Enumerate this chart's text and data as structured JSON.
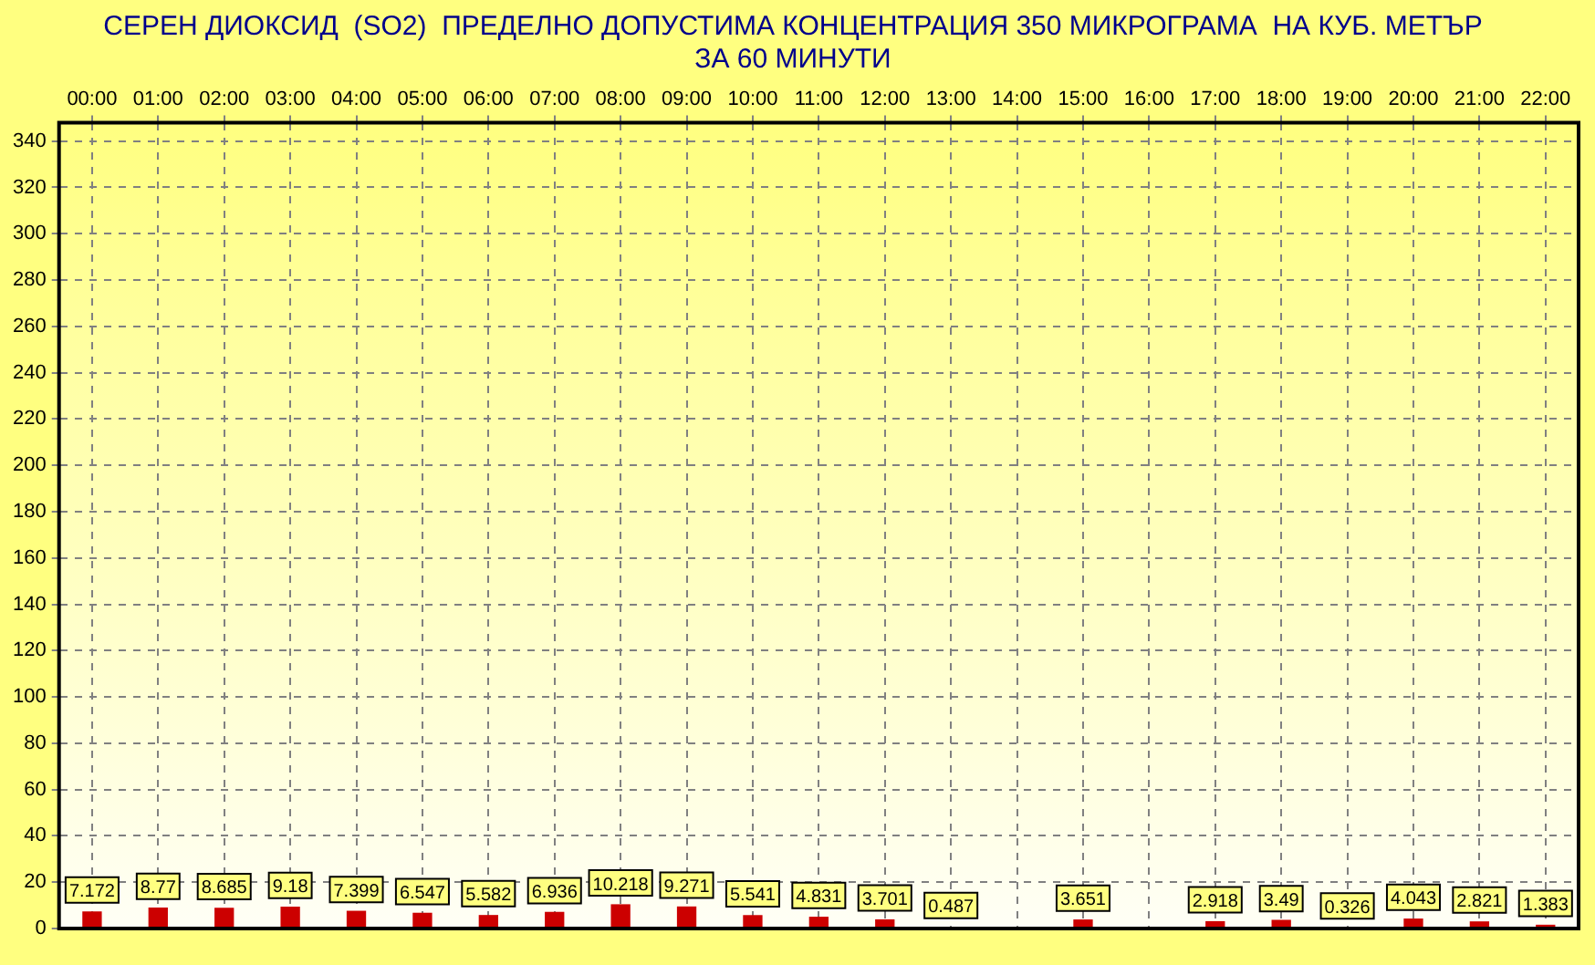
{
  "chart_data": {
    "type": "bar",
    "title": "СЕРЕН ДИОКСИД  (SO2)  ПРЕДЕЛНО ДОПУСТИМА КОНЦЕНТРАЦИЯ 350 МИКРОГРАМА  НА КУБ. МЕТЪР",
    "subtitle": "ЗА 60 МИНУТИ",
    "categories": [
      "00:00",
      "01:00",
      "02:00",
      "03:00",
      "04:00",
      "05:00",
      "06:00",
      "07:00",
      "08:00",
      "09:00",
      "10:00",
      "11:00",
      "12:00",
      "13:00",
      "14:00",
      "15:00",
      "16:00",
      "17:00",
      "18:00",
      "19:00",
      "20:00",
      "21:00",
      "22:00"
    ],
    "values": [
      7.172,
      8.77,
      8.685,
      9.18,
      7.399,
      6.547,
      5.582,
      6.936,
      10.218,
      9.271,
      5.541,
      4.831,
      3.701,
      0.487,
      null,
      3.651,
      null,
      2.918,
      3.49,
      0.326,
      4.043,
      2.821,
      1.383
    ],
    "color": "#cc0000",
    "ylim": [
      0,
      348
    ],
    "yticks": [
      0,
      20,
      40,
      60,
      80,
      100,
      120,
      140,
      160,
      180,
      200,
      220,
      240,
      260,
      280,
      300,
      320,
      340
    ],
    "grid": true,
    "legend": false,
    "data_labels": true
  }
}
